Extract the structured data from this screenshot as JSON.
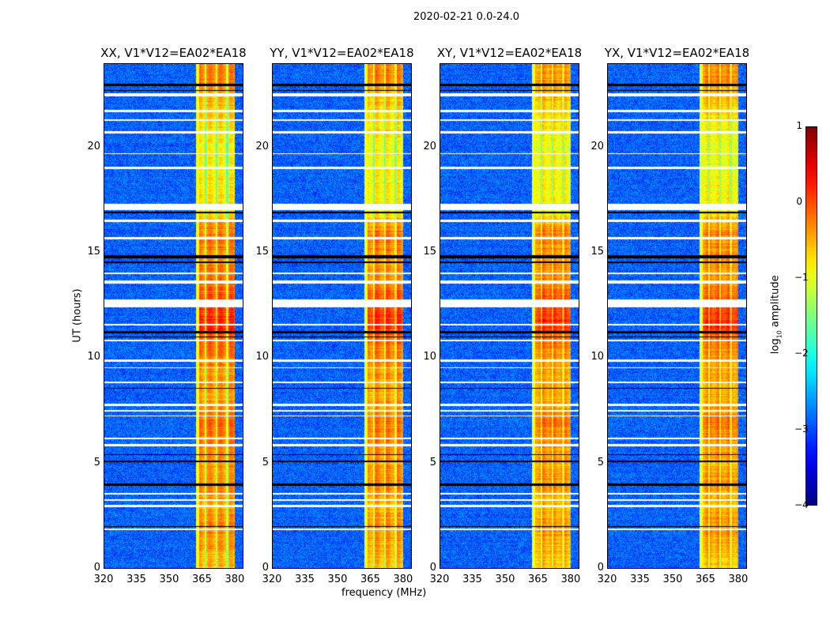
{
  "suptitle": "2020-02-21 0.0-24.0",
  "chart_data": {
    "type": "heatmap",
    "xlabel": "frequency (MHz)",
    "ylabel": "UT (hours)",
    "xlim": [
      320,
      384
    ],
    "ylim": [
      0,
      24
    ],
    "xticks": [
      "320",
      "335",
      "350",
      "365",
      "380"
    ],
    "yticks": [
      "0",
      "5",
      "10",
      "15",
      "20"
    ],
    "panels": [
      {
        "title": "XX, V1*V12=EA02*EA18"
      },
      {
        "title": "YY, V1*V12=EA02*EA18"
      },
      {
        "title": "XY, V1*V12=EA02*EA18"
      },
      {
        "title": "YX, V1*V12=EA02*EA18"
      }
    ],
    "colorbar": {
      "label": "log10 amplitude",
      "range": [
        -4,
        1
      ],
      "ticks": [
        "1",
        "0",
        "−1",
        "−2",
        "−3",
        "−4"
      ],
      "colormap": "jet"
    },
    "background_level": -2.9,
    "rfi_band_mhz": [
      362,
      380
    ],
    "rfi_gaps_mhz": [
      366.5,
      371.5,
      376.5
    ],
    "rfi_level_by_hour": [
      [
        0,
        -0.6
      ],
      [
        2,
        -0.3
      ],
      [
        3,
        -0.5
      ],
      [
        4,
        -0.3
      ],
      [
        5,
        -0.4
      ],
      [
        6,
        -0.3
      ],
      [
        7,
        -0.2
      ],
      [
        8,
        -0.4
      ],
      [
        9,
        -0.4
      ],
      [
        10,
        -0.3
      ],
      [
        11,
        -0.1
      ],
      [
        11.5,
        0.2
      ],
      [
        12.3,
        0.1
      ],
      [
        13,
        -0.1
      ],
      [
        14,
        -0.3
      ],
      [
        15,
        -0.3
      ],
      [
        16,
        -0.2
      ],
      [
        17,
        -0.8
      ],
      [
        20,
        -0.9
      ],
      [
        22,
        -0.6
      ],
      [
        23,
        -0.3
      ],
      [
        24,
        -0.3
      ]
    ],
    "flagged_hours_white": [
      [
        22.45,
        22.6
      ],
      [
        21.7,
        21.8
      ],
      [
        21.3,
        21.35
      ],
      [
        20.7,
        20.8
      ],
      [
        19.7,
        19.75
      ],
      [
        19.0,
        19.1
      ],
      [
        17.05,
        17.35
      ],
      [
        16.5,
        16.6
      ],
      [
        15.65,
        15.75
      ],
      [
        14.0,
        14.1
      ],
      [
        13.55,
        13.7
      ],
      [
        12.45,
        12.8
      ],
      [
        11.55,
        11.65
      ],
      [
        10.8,
        10.9
      ],
      [
        9.85,
        9.95
      ],
      [
        9.55,
        9.6
      ],
      [
        8.85,
        8.9
      ],
      [
        7.75,
        7.85
      ],
      [
        7.5,
        7.55
      ],
      [
        7.25,
        7.3
      ],
      [
        6.15,
        6.25
      ],
      [
        5.85,
        5.95
      ],
      [
        3.55,
        3.62
      ],
      [
        3.25,
        3.3
      ],
      [
        2.95,
        3.05
      ],
      [
        1.85,
        1.92
      ]
    ],
    "flagged_hours_black": [
      [
        22.95,
        23.05
      ],
      [
        22.7,
        22.75
      ],
      [
        16.9,
        16.95
      ],
      [
        14.75,
        14.9
      ],
      [
        14.55,
        14.6
      ],
      [
        11.2,
        11.3
      ],
      [
        11.0,
        11.05
      ],
      [
        8.55,
        8.6
      ],
      [
        5.4,
        5.45
      ],
      [
        5.1,
        5.15
      ],
      [
        3.95,
        4.05
      ],
      [
        2.0,
        2.05
      ]
    ]
  }
}
